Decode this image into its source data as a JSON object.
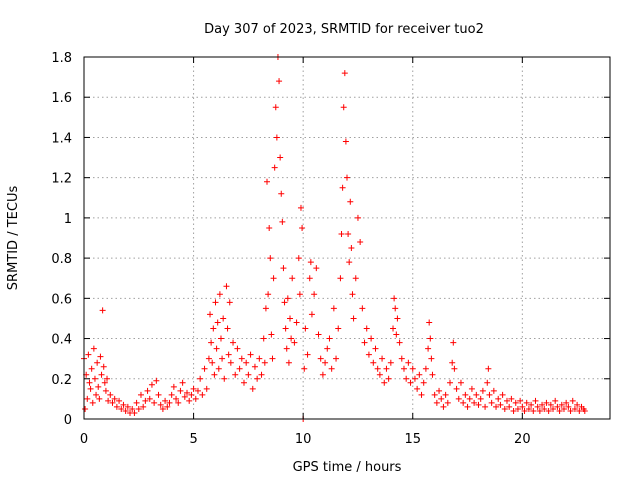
{
  "chart_data": {
    "type": "scatter",
    "title": "Day 307 of 2023, SRMTID for receiver tuo2",
    "xlabel": "GPS time / hours",
    "ylabel": "SRMTID / TECUs",
    "xlim": [
      0,
      24
    ],
    "ylim": [
      0,
      1.8
    ],
    "xticks": [
      0,
      5,
      10,
      15,
      20
    ],
    "xtick_labels": [
      "0",
      "5",
      "10",
      "15",
      "20"
    ],
    "yticks": [
      0,
      0.2,
      0.4,
      0.6,
      0.8,
      1,
      1.2,
      1.4,
      1.6,
      1.8
    ],
    "ytick_labels": [
      "0",
      "0.2",
      "0.4",
      "0.6",
      "0.8",
      "1",
      "1.2",
      "1.4",
      "1.6",
      "1.8"
    ],
    "grid": true,
    "marker": "+",
    "color": "#ff0000",
    "series": [
      {
        "name": "tuo2",
        "points": [
          [
            0.0,
            0.3
          ],
          [
            0.05,
            0.05
          ],
          [
            0.1,
            0.22
          ],
          [
            0.15,
            0.1
          ],
          [
            0.2,
            0.32
          ],
          [
            0.25,
            0.18
          ],
          [
            0.3,
            0.15
          ],
          [
            0.35,
            0.25
          ],
          [
            0.4,
            0.08
          ],
          [
            0.45,
            0.35
          ],
          [
            0.5,
            0.2
          ],
          [
            0.55,
            0.12
          ],
          [
            0.6,
            0.28
          ],
          [
            0.65,
            0.16
          ],
          [
            0.7,
            0.1
          ],
          [
            0.75,
            0.31
          ],
          [
            0.8,
            0.22
          ],
          [
            0.85,
            0.54
          ],
          [
            0.9,
            0.26
          ],
          [
            0.95,
            0.18
          ],
          [
            1.0,
            0.14
          ],
          [
            1.05,
            0.2
          ],
          [
            1.1,
            0.09
          ],
          [
            1.2,
            0.12
          ],
          [
            1.3,
            0.08
          ],
          [
            1.4,
            0.1
          ],
          [
            1.5,
            0.06
          ],
          [
            1.6,
            0.09
          ],
          [
            1.7,
            0.05
          ],
          [
            1.8,
            0.07
          ],
          [
            1.9,
            0.04
          ],
          [
            2.0,
            0.06
          ],
          [
            2.1,
            0.03
          ],
          [
            2.2,
            0.05
          ],
          [
            2.3,
            0.03
          ],
          [
            2.4,
            0.08
          ],
          [
            2.5,
            0.05
          ],
          [
            2.6,
            0.12
          ],
          [
            2.7,
            0.06
          ],
          [
            2.8,
            0.09
          ],
          [
            2.9,
            0.14
          ],
          [
            3.0,
            0.1
          ],
          [
            3.1,
            0.17
          ],
          [
            3.2,
            0.08
          ],
          [
            3.3,
            0.19
          ],
          [
            3.4,
            0.12
          ],
          [
            3.5,
            0.07
          ],
          [
            3.6,
            0.05
          ],
          [
            3.7,
            0.09
          ],
          [
            3.8,
            0.06
          ],
          [
            3.9,
            0.08
          ],
          [
            4.0,
            0.12
          ],
          [
            4.1,
            0.16
          ],
          [
            4.2,
            0.1
          ],
          [
            4.3,
            0.08
          ],
          [
            4.4,
            0.14
          ],
          [
            4.5,
            0.18
          ],
          [
            4.6,
            0.11
          ],
          [
            4.7,
            0.13
          ],
          [
            4.8,
            0.09
          ],
          [
            4.9,
            0.12
          ],
          [
            5.0,
            0.15
          ],
          [
            5.1,
            0.1
          ],
          [
            5.2,
            0.14
          ],
          [
            5.3,
            0.2
          ],
          [
            5.4,
            0.12
          ],
          [
            5.5,
            0.25
          ],
          [
            5.6,
            0.15
          ],
          [
            5.7,
            0.3
          ],
          [
            5.75,
            0.52
          ],
          [
            5.8,
            0.38
          ],
          [
            5.85,
            0.28
          ],
          [
            5.9,
            0.45
          ],
          [
            5.95,
            0.22
          ],
          [
            6.0,
            0.58
          ],
          [
            6.05,
            0.35
          ],
          [
            6.1,
            0.48
          ],
          [
            6.15,
            0.25
          ],
          [
            6.2,
            0.62
          ],
          [
            6.25,
            0.4
          ],
          [
            6.3,
            0.3
          ],
          [
            6.35,
            0.5
          ],
          [
            6.4,
            0.2
          ],
          [
            6.5,
            0.66
          ],
          [
            6.55,
            0.45
          ],
          [
            6.6,
            0.32
          ],
          [
            6.65,
            0.58
          ],
          [
            6.7,
            0.28
          ],
          [
            6.8,
            0.38
          ],
          [
            6.9,
            0.22
          ],
          [
            7.0,
            0.35
          ],
          [
            7.1,
            0.25
          ],
          [
            7.2,
            0.3
          ],
          [
            7.3,
            0.18
          ],
          [
            7.4,
            0.28
          ],
          [
            7.5,
            0.22
          ],
          [
            7.6,
            0.32
          ],
          [
            7.7,
            0.15
          ],
          [
            7.8,
            0.26
          ],
          [
            7.9,
            0.2
          ],
          [
            8.0,
            0.3
          ],
          [
            8.1,
            0.22
          ],
          [
            8.2,
            0.4
          ],
          [
            8.25,
            0.28
          ],
          [
            8.3,
            0.55
          ],
          [
            8.35,
            1.18
          ],
          [
            8.4,
            0.62
          ],
          [
            8.45,
            0.95
          ],
          [
            8.5,
            0.8
          ],
          [
            8.55,
            0.42
          ],
          [
            8.6,
            0.3
          ],
          [
            8.65,
            0.7
          ],
          [
            8.7,
            1.25
          ],
          [
            8.75,
            1.55
          ],
          [
            8.8,
            1.4
          ],
          [
            8.85,
            1.8
          ],
          [
            8.9,
            1.68
          ],
          [
            8.95,
            1.3
          ],
          [
            9.0,
            1.12
          ],
          [
            9.05,
            0.98
          ],
          [
            9.1,
            0.75
          ],
          [
            9.15,
            0.58
          ],
          [
            9.2,
            0.45
          ],
          [
            9.25,
            0.35
          ],
          [
            9.3,
            0.6
          ],
          [
            9.35,
            0.28
          ],
          [
            9.4,
            0.5
          ],
          [
            9.45,
            0.4
          ],
          [
            9.5,
            0.7
          ],
          [
            9.6,
            0.38
          ],
          [
            9.7,
            0.48
          ],
          [
            9.8,
            0.8
          ],
          [
            9.85,
            0.62
          ],
          [
            9.9,
            1.05
          ],
          [
            9.95,
            0.95
          ],
          [
            10.0,
            0.0
          ],
          [
            10.05,
            0.25
          ],
          [
            10.1,
            0.45
          ],
          [
            10.2,
            0.32
          ],
          [
            10.3,
            0.7
          ],
          [
            10.35,
            0.78
          ],
          [
            10.4,
            0.52
          ],
          [
            10.5,
            0.62
          ],
          [
            10.6,
            0.75
          ],
          [
            10.7,
            0.42
          ],
          [
            10.8,
            0.3
          ],
          [
            10.9,
            0.22
          ],
          [
            11.0,
            0.28
          ],
          [
            11.1,
            0.35
          ],
          [
            11.2,
            0.4
          ],
          [
            11.3,
            0.25
          ],
          [
            11.4,
            0.55
          ],
          [
            11.5,
            0.3
          ],
          [
            11.6,
            0.45
          ],
          [
            11.7,
            0.7
          ],
          [
            11.75,
            0.92
          ],
          [
            11.8,
            1.15
          ],
          [
            11.85,
            1.55
          ],
          [
            11.9,
            1.72
          ],
          [
            11.95,
            1.38
          ],
          [
            12.0,
            1.2
          ],
          [
            12.05,
            0.92
          ],
          [
            12.1,
            0.78
          ],
          [
            12.15,
            1.08
          ],
          [
            12.2,
            0.85
          ],
          [
            12.25,
            0.62
          ],
          [
            12.3,
            0.5
          ],
          [
            12.4,
            0.7
          ],
          [
            12.5,
            1.0
          ],
          [
            12.6,
            0.88
          ],
          [
            12.7,
            0.55
          ],
          [
            12.8,
            0.38
          ],
          [
            12.9,
            0.45
          ],
          [
            13.0,
            0.32
          ],
          [
            13.1,
            0.4
          ],
          [
            13.2,
            0.28
          ],
          [
            13.3,
            0.35
          ],
          [
            13.4,
            0.25
          ],
          [
            13.5,
            0.22
          ],
          [
            13.6,
            0.3
          ],
          [
            13.7,
            0.18
          ],
          [
            13.8,
            0.25
          ],
          [
            13.9,
            0.2
          ],
          [
            14.0,
            0.28
          ],
          [
            14.1,
            0.45
          ],
          [
            14.15,
            0.6
          ],
          [
            14.2,
            0.55
          ],
          [
            14.25,
            0.42
          ],
          [
            14.3,
            0.5
          ],
          [
            14.4,
            0.38
          ],
          [
            14.5,
            0.3
          ],
          [
            14.6,
            0.25
          ],
          [
            14.7,
            0.2
          ],
          [
            14.8,
            0.28
          ],
          [
            14.9,
            0.18
          ],
          [
            15.0,
            0.25
          ],
          [
            15.1,
            0.2
          ],
          [
            15.2,
            0.15
          ],
          [
            15.3,
            0.22
          ],
          [
            15.4,
            0.12
          ],
          [
            15.5,
            0.18
          ],
          [
            15.6,
            0.25
          ],
          [
            15.7,
            0.35
          ],
          [
            15.75,
            0.48
          ],
          [
            15.8,
            0.4
          ],
          [
            15.85,
            0.3
          ],
          [
            15.9,
            0.22
          ],
          [
            16.0,
            0.12
          ],
          [
            16.1,
            0.08
          ],
          [
            16.2,
            0.14
          ],
          [
            16.3,
            0.1
          ],
          [
            16.4,
            0.06
          ],
          [
            16.5,
            0.12
          ],
          [
            16.6,
            0.08
          ],
          [
            16.7,
            0.18
          ],
          [
            16.8,
            0.28
          ],
          [
            16.85,
            0.38
          ],
          [
            16.9,
            0.25
          ],
          [
            17.0,
            0.15
          ],
          [
            17.1,
            0.1
          ],
          [
            17.2,
            0.18
          ],
          [
            17.3,
            0.08
          ],
          [
            17.4,
            0.12
          ],
          [
            17.5,
            0.06
          ],
          [
            17.6,
            0.1
          ],
          [
            17.7,
            0.15
          ],
          [
            17.8,
            0.08
          ],
          [
            17.9,
            0.12
          ],
          [
            18.0,
            0.07
          ],
          [
            18.1,
            0.1
          ],
          [
            18.2,
            0.14
          ],
          [
            18.3,
            0.06
          ],
          [
            18.4,
            0.18
          ],
          [
            18.45,
            0.25
          ],
          [
            18.5,
            0.12
          ],
          [
            18.6,
            0.08
          ],
          [
            18.7,
            0.14
          ],
          [
            18.8,
            0.06
          ],
          [
            18.9,
            0.1
          ],
          [
            19.0,
            0.07
          ],
          [
            19.1,
            0.12
          ],
          [
            19.2,
            0.05
          ],
          [
            19.3,
            0.09
          ],
          [
            19.4,
            0.06
          ],
          [
            19.5,
            0.1
          ],
          [
            19.6,
            0.04
          ],
          [
            19.7,
            0.08
          ],
          [
            19.8,
            0.05
          ],
          [
            19.9,
            0.09
          ],
          [
            20.0,
            0.06
          ],
          [
            20.1,
            0.04
          ],
          [
            20.2,
            0.08
          ],
          [
            20.3,
            0.05
          ],
          [
            20.4,
            0.07
          ],
          [
            20.5,
            0.04
          ],
          [
            20.6,
            0.09
          ],
          [
            20.7,
            0.06
          ],
          [
            20.8,
            0.04
          ],
          [
            20.9,
            0.07
          ],
          [
            21.0,
            0.05
          ],
          [
            21.1,
            0.08
          ],
          [
            21.2,
            0.04
          ],
          [
            21.3,
            0.07
          ],
          [
            21.4,
            0.05
          ],
          [
            21.5,
            0.09
          ],
          [
            21.6,
            0.06
          ],
          [
            21.7,
            0.04
          ],
          [
            21.8,
            0.07
          ],
          [
            21.9,
            0.05
          ],
          [
            22.0,
            0.08
          ],
          [
            22.1,
            0.06
          ],
          [
            22.2,
            0.04
          ],
          [
            22.3,
            0.09
          ],
          [
            22.4,
            0.05
          ],
          [
            22.5,
            0.07
          ],
          [
            22.6,
            0.04
          ],
          [
            22.7,
            0.06
          ],
          [
            22.8,
            0.05
          ],
          [
            22.85,
            0.04
          ]
        ]
      }
    ]
  }
}
